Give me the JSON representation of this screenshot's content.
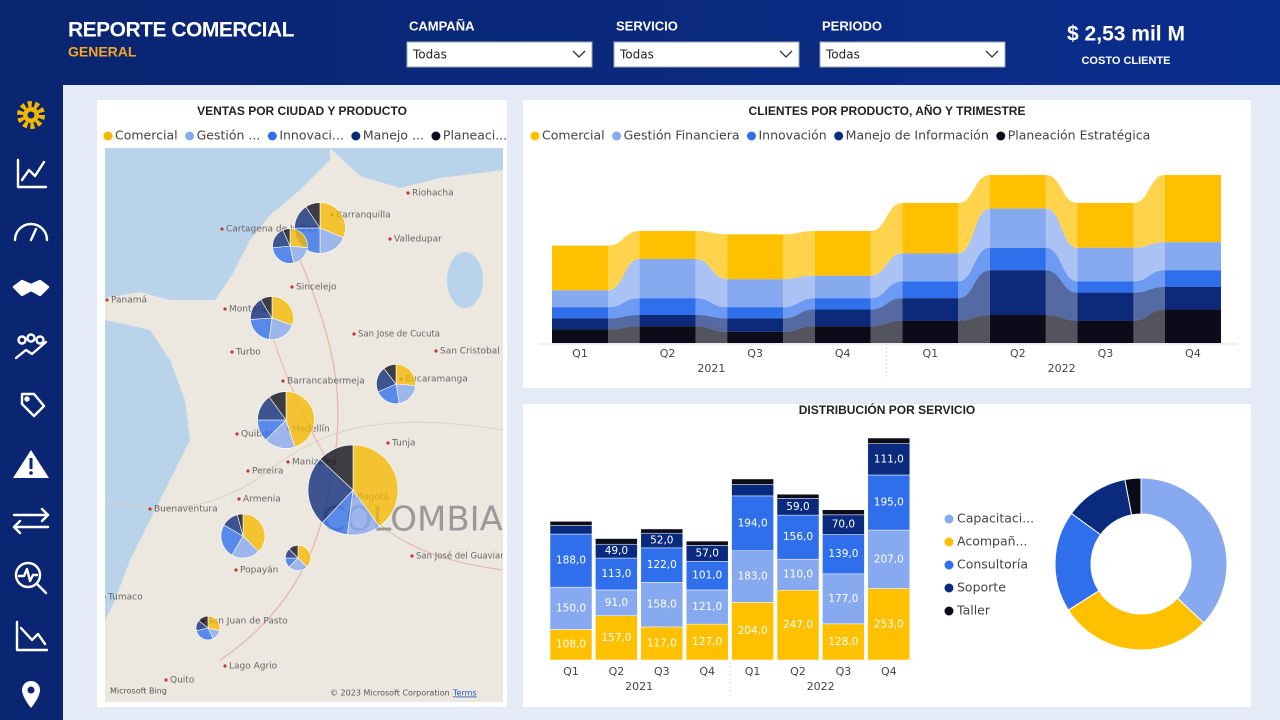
{
  "header": {
    "title": "REPORTE COMERCIAL",
    "subtitle": "GENERAL",
    "filters": [
      {
        "label": "CAMPAÑA",
        "value": "Todas"
      },
      {
        "label": "SERVICIO",
        "value": "Todas"
      },
      {
        "label": "PERIODO",
        "value": "Todas"
      }
    ],
    "kpi": {
      "value": "$ 2,53 mil M",
      "label": "COSTO CLIENTE"
    }
  },
  "chart_data": [
    {
      "type": "map-pie",
      "title": "VENTAS POR CIUDAD Y PRODUCTO",
      "series": [
        {
          "name": "Comercial",
          "color": "#f5b800",
          "values": [
            10,
            4,
            7,
            5,
            18,
            40,
            9,
            3,
            2
          ]
        },
        {
          "name": "Gestión ...",
          "color": "#86a9ef",
          "values": [
            6,
            3,
            5,
            4,
            7,
            12,
            5,
            2,
            1
          ]
        },
        {
          "name": "Innovaci...",
          "color": "#2f6fec",
          "values": [
            8,
            4,
            5,
            4,
            5,
            10,
            6,
            1,
            2
          ]
        },
        {
          "name": "Manejo ...",
          "color": "#0d2a7a",
          "values": [
            5,
            3,
            4,
            4,
            6,
            25,
            3,
            1,
            1
          ]
        },
        {
          "name": "Planeaci...",
          "color": "#0b0b1a",
          "values": [
            3,
            1,
            2,
            2,
            4,
            13,
            1,
            1,
            1
          ]
        }
      ],
      "map_labels": [
        "Riohacha",
        "Barranquilla",
        "Cartagena de Indias",
        "Valledupar",
        "Panamá",
        "Sincelejo",
        "Montería",
        "Turbo",
        "San Jose de Cucuta",
        "San Cristobal",
        "Barrancabermeja",
        "Bucaramanga",
        "Quibdó",
        "Medellín",
        "Tunja",
        "Manizales",
        "Pereira",
        "Armenia",
        "Bogotá",
        "Buenaventura",
        "Popayán",
        "San José del Guaviare",
        "Tumaco",
        "San Juan de Pasto",
        "Lago Agrio",
        "Quito",
        "COLOMBIA"
      ],
      "provider": "Microsoft Bing",
      "attribution": "© 2023 Microsoft Corporation",
      "terms": "Terms"
    },
    {
      "type": "ribbon",
      "title": "CLIENTES POR PRODUCTO, AÑO Y TRIMESTRE",
      "categories": [
        "Q1",
        "Q2",
        "Q3",
        "Q4",
        "Q1",
        "Q2",
        "Q3",
        "Q4"
      ],
      "groups": [
        "2021",
        "2022"
      ],
      "series": [
        {
          "name": "Comercial",
          "color": "#ffc000",
          "values": [
            40,
            25,
            40,
            40,
            45,
            30,
            40,
            60
          ]
        },
        {
          "name": "Gestión Financiera",
          "color": "#86a9ef",
          "values": [
            15,
            35,
            25,
            20,
            25,
            35,
            30,
            25
          ]
        },
        {
          "name": "Innovación",
          "color": "#2f6fec",
          "values": [
            10,
            15,
            10,
            10,
            15,
            20,
            10,
            15
          ]
        },
        {
          "name": "Manejo de Información",
          "color": "#0d2a7a",
          "values": [
            10,
            10,
            12,
            15,
            20,
            40,
            25,
            20
          ]
        },
        {
          "name": "Planeación Estratégica",
          "color": "#0b0b1a",
          "values": [
            12,
            15,
            10,
            15,
            20,
            25,
            20,
            30
          ]
        }
      ]
    },
    {
      "type": "bar",
      "stacked": true,
      "title": "DISTRIBUCIÓN POR SERVICIO",
      "categories": [
        "Q1",
        "Q2",
        "Q3",
        "Q4",
        "Q1",
        "Q2",
        "Q3",
        "Q4"
      ],
      "groups": [
        "2021",
        "2022"
      ],
      "series": [
        {
          "name": "Capacitaci...",
          "color": "#86a9ef",
          "values": [
            150,
            91,
            158,
            121,
            183,
            110,
            177,
            207
          ],
          "value_labels": [
            "150,0",
            "91,0",
            "158,0",
            "121,0",
            "183,0",
            "110,0",
            "177,0",
            "207,0"
          ]
        },
        {
          "name": "Acompañ...",
          "color": "#ffc000",
          "values": [
            108,
            157,
            117,
            127,
            204,
            247,
            128,
            253
          ],
          "value_labels": [
            "108,0",
            "157,0",
            "117,0",
            "127,0",
            "204,0",
            "247,0",
            "128,0",
            "253,0"
          ]
        },
        {
          "name": "Consultoría",
          "color": "#2f6fec",
          "values": [
            188,
            113,
            122,
            101,
            194,
            156,
            139,
            195
          ],
          "value_labels": [
            "188,0",
            "113,0",
            "122,0",
            "101,0",
            "194,0",
            "156,0",
            "139,0",
            "195,0"
          ]
        },
        {
          "name": "Soporte",
          "color": "#0a2a80",
          "values": [
            30,
            49,
            52,
            57,
            40,
            59,
            70,
            111
          ],
          "value_labels": [
            null,
            "49,0",
            "52,0",
            "57,0",
            null,
            "59,0",
            "70,0",
            "111,0"
          ]
        },
        {
          "name": "Taller",
          "color": "#0b0b1a",
          "values": [
            15,
            20,
            15,
            15,
            20,
            15,
            18,
            20
          ]
        }
      ]
    },
    {
      "type": "donut",
      "categories": [
        "Capacitaci...",
        "Acompañ...",
        "Consultoría",
        "Soporte",
        "Taller"
      ],
      "colors": [
        "#86a9ef",
        "#ffc000",
        "#2f6fec",
        "#0a2a80",
        "#0b0b1a"
      ],
      "values": [
        37,
        29,
        19,
        12,
        3
      ]
    }
  ]
}
